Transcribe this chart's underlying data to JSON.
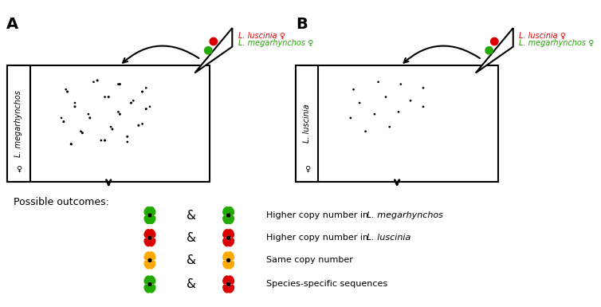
{
  "title_A": "A",
  "title_B": "B",
  "species_A": "L. megarhynchos",
  "species_B": "L. luscinia",
  "female_symbol": "♀",
  "label_megarhynchos": "L. megarhynchos ♀",
  "label_luscinia": "L. luscinia ♀",
  "color_green": "#22aa00",
  "color_red": "#dd0000",
  "color_orange": "#ffaa00",
  "color_black": "#000000",
  "color_white": "#ffffff",
  "possible_outcomes": "Possible outcomes:",
  "outcome1": "Higher copy number in ",
  "outcome1_italic": "L. megarhynchos",
  "outcome2": "Higher copy number in ",
  "outcome2_italic": "L. luscinia",
  "outcome3": "Same copy number",
  "outcome4": "Species-specific sequences",
  "bg_color": "#ffffff"
}
